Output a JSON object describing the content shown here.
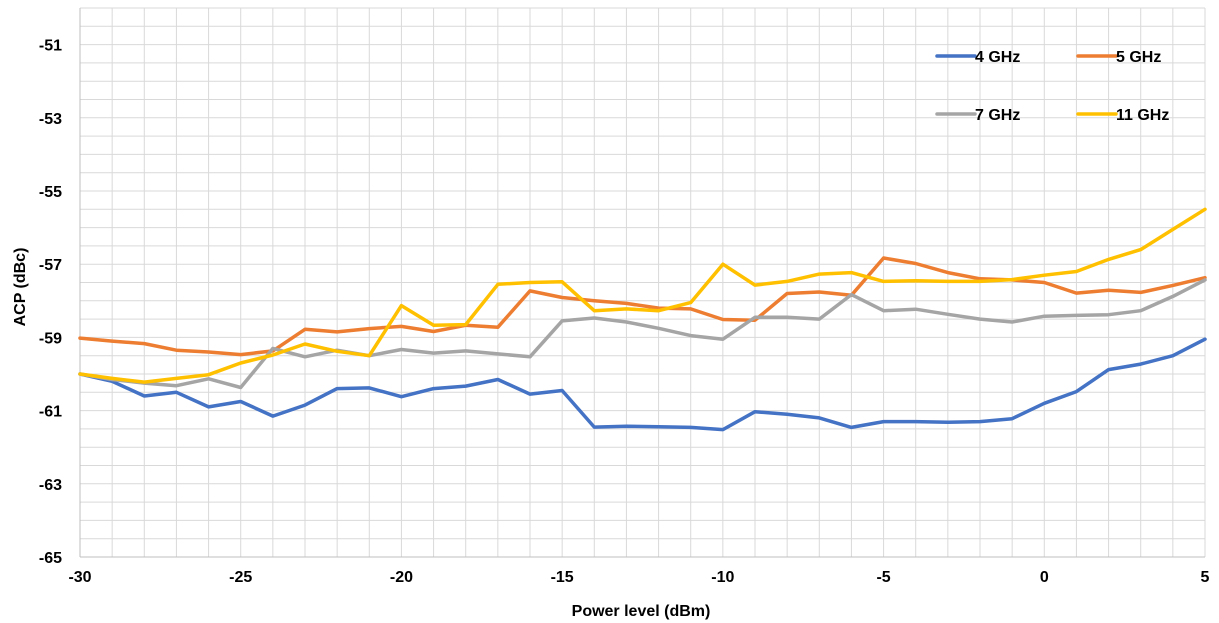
{
  "chart_data": {
    "type": "line",
    "title": "",
    "xlabel": "Power level (dBm)",
    "ylabel": "ACP (dBc)",
    "xlim": [
      -30,
      5
    ],
    "ylim": [
      -65,
      -50
    ],
    "x_ticks": [
      -30,
      -25,
      -20,
      -15,
      -10,
      -5,
      0,
      5
    ],
    "y_ticks": [
      -65,
      -63,
      -61,
      -59,
      -57,
      -55,
      -53,
      -51
    ],
    "grid": true,
    "legend_position": "top-right",
    "x": [
      -30,
      -29,
      -28,
      -27,
      -26,
      -25,
      -24,
      -23,
      -22,
      -21,
      -20,
      -19,
      -18,
      -17,
      -16,
      -15,
      -14,
      -13,
      -12,
      -11,
      -10,
      -9,
      -8,
      -7,
      -6,
      -5,
      -4,
      -3,
      -2,
      -1,
      0,
      1,
      2,
      3,
      4,
      5
    ],
    "series": [
      {
        "name": "4 GHz",
        "color": "#4472C4",
        "values": [
          -60.0,
          -60.2,
          -60.6,
          -60.5,
          -60.9,
          -60.75,
          -61.15,
          -60.85,
          -60.4,
          -60.38,
          -60.62,
          -60.4,
          -60.33,
          -60.15,
          -60.55,
          -60.45,
          -61.45,
          -61.43,
          -61.44,
          -61.46,
          -61.52,
          -61.03,
          -61.1,
          -61.2,
          -61.46,
          -61.3,
          -61.3,
          -61.32,
          -61.3,
          -61.22,
          -60.8,
          -60.48,
          -59.88,
          -59.73,
          -59.5,
          -59.05
        ]
      },
      {
        "name": "5 GHz",
        "color": "#ED7D31",
        "values": [
          -59.02,
          -59.1,
          -59.17,
          -59.35,
          -59.4,
          -59.47,
          -59.37,
          -58.78,
          -58.85,
          -58.76,
          -58.7,
          -58.84,
          -58.67,
          -58.72,
          -57.73,
          -57.91,
          -58.0,
          -58.07,
          -58.2,
          -58.22,
          -58.51,
          -58.53,
          -57.8,
          -57.76,
          -57.85,
          -56.83,
          -56.98,
          -57.23,
          -57.4,
          -57.43,
          -57.5,
          -57.79,
          -57.71,
          -57.77,
          -57.58,
          -57.37
        ]
      },
      {
        "name": "7 GHz",
        "color": "#A5A5A5",
        "values": [
          -60.0,
          -60.15,
          -60.25,
          -60.32,
          -60.13,
          -60.37,
          -59.3,
          -59.53,
          -59.35,
          -59.5,
          -59.33,
          -59.43,
          -59.37,
          -59.45,
          -59.53,
          -58.55,
          -58.47,
          -58.58,
          -58.75,
          -58.95,
          -59.05,
          -58.45,
          -58.45,
          -58.5,
          -57.83,
          -58.27,
          -58.23,
          -58.37,
          -58.5,
          -58.58,
          -58.42,
          -58.4,
          -58.38,
          -58.27,
          -57.88,
          -57.43
        ]
      },
      {
        "name": "11 GHz",
        "color": "#FFC000",
        "values": [
          -60.0,
          -60.12,
          -60.22,
          -60.12,
          -60.02,
          -59.7,
          -59.48,
          -59.18,
          -59.38,
          -59.5,
          -58.13,
          -58.67,
          -58.65,
          -57.55,
          -57.5,
          -57.48,
          -58.27,
          -58.22,
          -58.27,
          -58.05,
          -57.0,
          -57.57,
          -57.47,
          -57.27,
          -57.23,
          -57.47,
          -57.45,
          -57.47,
          -57.47,
          -57.42,
          -57.3,
          -57.2,
          -56.87,
          -56.6,
          -56.05,
          -55.5
        ]
      }
    ]
  }
}
